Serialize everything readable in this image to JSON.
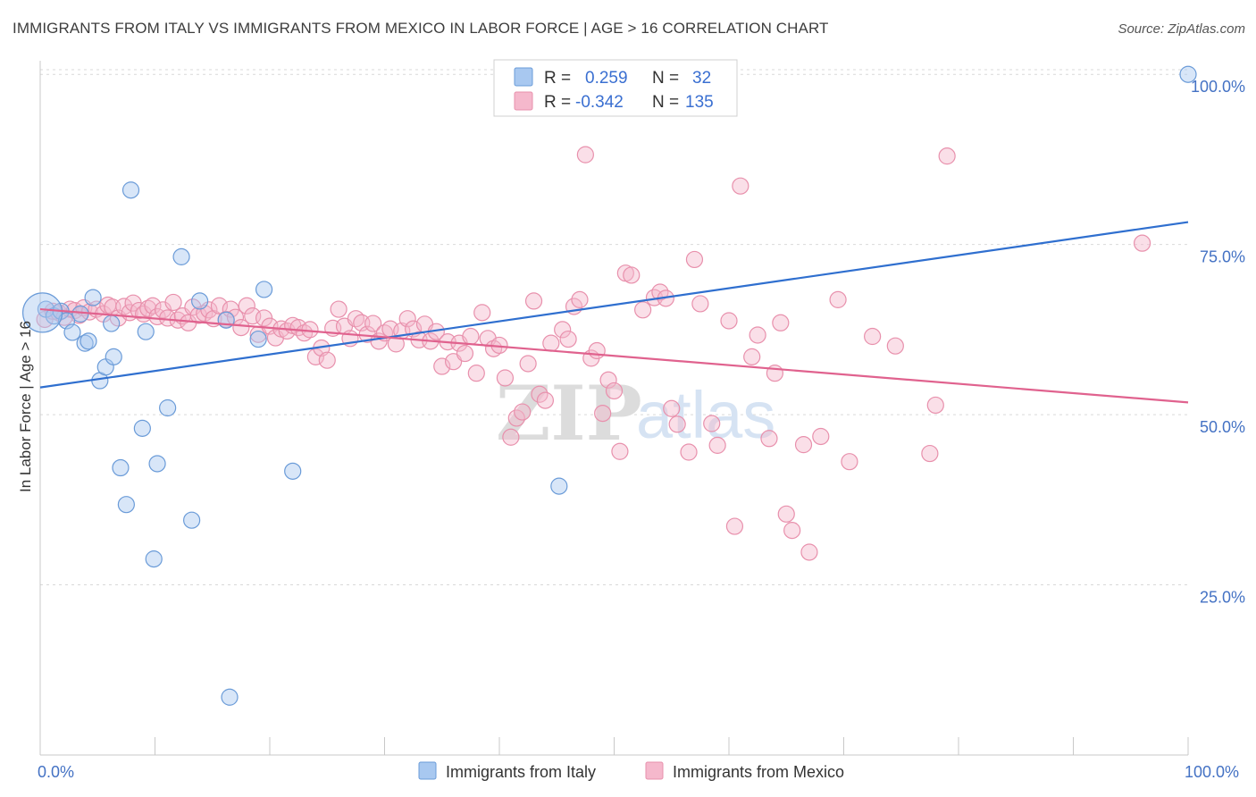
{
  "title": "IMMIGRANTS FROM ITALY VS IMMIGRANTS FROM MEXICO IN LABOR FORCE | AGE > 16 CORRELATION CHART",
  "source": "Source: ZipAtlas.com",
  "watermark": {
    "zip": "ZIP",
    "atlas": "atlas"
  },
  "colors": {
    "italy_fill": "#a8c8f0",
    "italy_stroke": "#6a9bd8",
    "italy_line": "#2f6fcf",
    "mexico_fill": "#f5b8cc",
    "mexico_stroke": "#e890ac",
    "mexico_line": "#e0628e",
    "tick_text": "#4472c4",
    "grid": "#d9d9d9"
  },
  "legend": {
    "rows": [
      {
        "r_label": "R =",
        "r_value": "0.259",
        "n_label": "N =",
        "n_value": "32"
      },
      {
        "r_label": "R =",
        "r_value": "-0.342",
        "n_label": "N =",
        "n_value": "135"
      }
    ]
  },
  "chart_data": {
    "type": "scatter",
    "xlabel": "",
    "ylabel": "In Labor Force | Age > 16",
    "xlim": [
      0,
      100
    ],
    "ylim": [
      0,
      102
    ],
    "x_tick_labels": [
      "0.0%",
      "100.0%"
    ],
    "y_ticks": [
      25,
      50,
      75,
      100
    ],
    "y_tick_labels": [
      "25.0%",
      "50.0%",
      "75.0%",
      "100.0%"
    ],
    "grid": true,
    "legend_position": "top-center",
    "series": [
      {
        "name": "Immigrants from Italy",
        "r": 0.259,
        "n": 32,
        "trend": {
          "x": [
            0,
            100
          ],
          "y": [
            54,
            78.3
          ]
        },
        "points": [
          [
            0.5,
            65.5
          ],
          [
            1.2,
            64.5
          ],
          [
            1.8,
            65.2
          ],
          [
            2.3,
            63.8
          ],
          [
            2.8,
            62.1
          ],
          [
            3.5,
            64.8
          ],
          [
            3.9,
            60.5
          ],
          [
            4.2,
            60.8
          ],
          [
            4.6,
            67.2
          ],
          [
            5.2,
            55.0
          ],
          [
            5.7,
            57.0
          ],
          [
            6.2,
            63.4
          ],
          [
            6.4,
            58.5
          ],
          [
            7.0,
            42.2
          ],
          [
            7.5,
            36.8
          ],
          [
            7.9,
            83.0
          ],
          [
            8.9,
            48.0
          ],
          [
            9.2,
            62.2
          ],
          [
            9.9,
            28.8
          ],
          [
            10.2,
            42.8
          ],
          [
            11.1,
            51.0
          ],
          [
            12.3,
            73.2
          ],
          [
            13.2,
            34.5
          ],
          [
            13.9,
            66.7
          ],
          [
            16.2,
            63.9
          ],
          [
            16.5,
            8.5
          ],
          [
            19.0,
            61.1
          ],
          [
            19.5,
            68.4
          ],
          [
            22.0,
            41.7
          ],
          [
            45.2,
            39.5
          ],
          [
            100.0,
            100.0
          ],
          [
            0.2,
            65.0
          ]
        ]
      },
      {
        "name": "Immigrants from Mexico",
        "r": -0.342,
        "n": 135,
        "trend": {
          "x": [
            0,
            100
          ],
          "y": [
            65.5,
            51.8
          ]
        },
        "points": [
          [
            0.4,
            64.0
          ],
          [
            1.1,
            65.2
          ],
          [
            1.6,
            65.0
          ],
          [
            2.1,
            64.3
          ],
          [
            2.6,
            65.5
          ],
          [
            3.0,
            65.3
          ],
          [
            3.4,
            64.6
          ],
          [
            3.8,
            65.7
          ],
          [
            4.3,
            65.1
          ],
          [
            4.9,
            65.5
          ],
          [
            5.5,
            64.8
          ],
          [
            5.9,
            66.1
          ],
          [
            6.3,
            65.8
          ],
          [
            6.8,
            64.2
          ],
          [
            7.3,
            65.9
          ],
          [
            7.8,
            65.0
          ],
          [
            8.1,
            66.4
          ],
          [
            8.6,
            65.3
          ],
          [
            9.0,
            64.8
          ],
          [
            9.4,
            65.6
          ],
          [
            9.8,
            66.0
          ],
          [
            10.2,
            64.4
          ],
          [
            10.7,
            65.4
          ],
          [
            11.1,
            64.2
          ],
          [
            11.6,
            66.5
          ],
          [
            12.0,
            63.9
          ],
          [
            12.4,
            64.5
          ],
          [
            12.9,
            63.5
          ],
          [
            13.3,
            65.8
          ],
          [
            13.8,
            64.6
          ],
          [
            14.3,
            64.9
          ],
          [
            14.7,
            65.4
          ],
          [
            15.1,
            64.1
          ],
          [
            15.6,
            66.0
          ],
          [
            16.2,
            64.0
          ],
          [
            16.6,
            65.5
          ],
          [
            17.0,
            64.3
          ],
          [
            17.5,
            62.8
          ],
          [
            18.0,
            66.0
          ],
          [
            18.5,
            64.5
          ],
          [
            19.0,
            61.8
          ],
          [
            19.5,
            64.2
          ],
          [
            20.0,
            63.0
          ],
          [
            20.5,
            61.3
          ],
          [
            21.0,
            62.6
          ],
          [
            21.5,
            62.3
          ],
          [
            22.0,
            63.1
          ],
          [
            22.5,
            62.8
          ],
          [
            23.0,
            62.0
          ],
          [
            23.5,
            62.5
          ],
          [
            24.0,
            58.5
          ],
          [
            24.5,
            59.8
          ],
          [
            25.0,
            58.0
          ],
          [
            25.5,
            62.7
          ],
          [
            26.0,
            65.5
          ],
          [
            26.5,
            63.0
          ],
          [
            27.0,
            61.2
          ],
          [
            27.5,
            64.1
          ],
          [
            28.0,
            63.5
          ],
          [
            28.5,
            61.8
          ],
          [
            29.0,
            63.4
          ],
          [
            29.5,
            60.8
          ],
          [
            30.0,
            62.0
          ],
          [
            30.5,
            62.6
          ],
          [
            31.0,
            60.4
          ],
          [
            31.5,
            62.3
          ],
          [
            32.0,
            64.1
          ],
          [
            32.5,
            62.6
          ],
          [
            33.0,
            61.0
          ],
          [
            33.5,
            63.3
          ],
          [
            34.0,
            60.8
          ],
          [
            34.5,
            62.2
          ],
          [
            35.0,
            57.1
          ],
          [
            35.5,
            60.7
          ],
          [
            36.0,
            57.8
          ],
          [
            36.5,
            60.5
          ],
          [
            37.0,
            59.0
          ],
          [
            37.5,
            61.5
          ],
          [
            38.0,
            56.1
          ],
          [
            38.5,
            65.0
          ],
          [
            39.0,
            61.2
          ],
          [
            39.5,
            59.7
          ],
          [
            40.0,
            60.2
          ],
          [
            40.5,
            55.4
          ],
          [
            41.0,
            46.7
          ],
          [
            41.5,
            49.5
          ],
          [
            42.0,
            50.4
          ],
          [
            42.5,
            57.5
          ],
          [
            43.0,
            66.7
          ],
          [
            43.5,
            53.0
          ],
          [
            44.0,
            52.1
          ],
          [
            44.5,
            60.5
          ],
          [
            45.5,
            62.5
          ],
          [
            46.0,
            61.1
          ],
          [
            46.5,
            65.9
          ],
          [
            47.0,
            66.9
          ],
          [
            47.5,
            88.2
          ],
          [
            48.0,
            58.3
          ],
          [
            48.5,
            59.4
          ],
          [
            49.0,
            50.2
          ],
          [
            49.5,
            55.1
          ],
          [
            50.0,
            53.5
          ],
          [
            50.5,
            44.6
          ],
          [
            51.0,
            70.8
          ],
          [
            51.5,
            70.5
          ],
          [
            52.5,
            65.4
          ],
          [
            53.5,
            67.2
          ],
          [
            54.0,
            68.0
          ],
          [
            54.5,
            67.1
          ],
          [
            55.0,
            50.9
          ],
          [
            55.5,
            48.6
          ],
          [
            56.5,
            44.5
          ],
          [
            57.0,
            72.8
          ],
          [
            57.5,
            66.3
          ],
          [
            58.5,
            48.7
          ],
          [
            59.0,
            45.5
          ],
          [
            60.0,
            63.8
          ],
          [
            60.5,
            33.6
          ],
          [
            61.0,
            83.6
          ],
          [
            62.0,
            58.5
          ],
          [
            62.5,
            61.7
          ],
          [
            63.5,
            46.5
          ],
          [
            64.0,
            56.1
          ],
          [
            64.5,
            63.5
          ],
          [
            65.0,
            35.4
          ],
          [
            65.5,
            33.0
          ],
          [
            66.5,
            45.6
          ],
          [
            67.0,
            29.8
          ],
          [
            68.0,
            46.8
          ],
          [
            69.5,
            66.9
          ],
          [
            70.5,
            43.1
          ],
          [
            72.5,
            61.5
          ],
          [
            74.5,
            60.1
          ],
          [
            77.5,
            44.3
          ],
          [
            78.0,
            51.4
          ],
          [
            79.0,
            88.0
          ],
          [
            96.0,
            75.2
          ]
        ]
      }
    ]
  },
  "bottom_legend": [
    "Immigrants from Italy",
    "Immigrants from Mexico"
  ]
}
